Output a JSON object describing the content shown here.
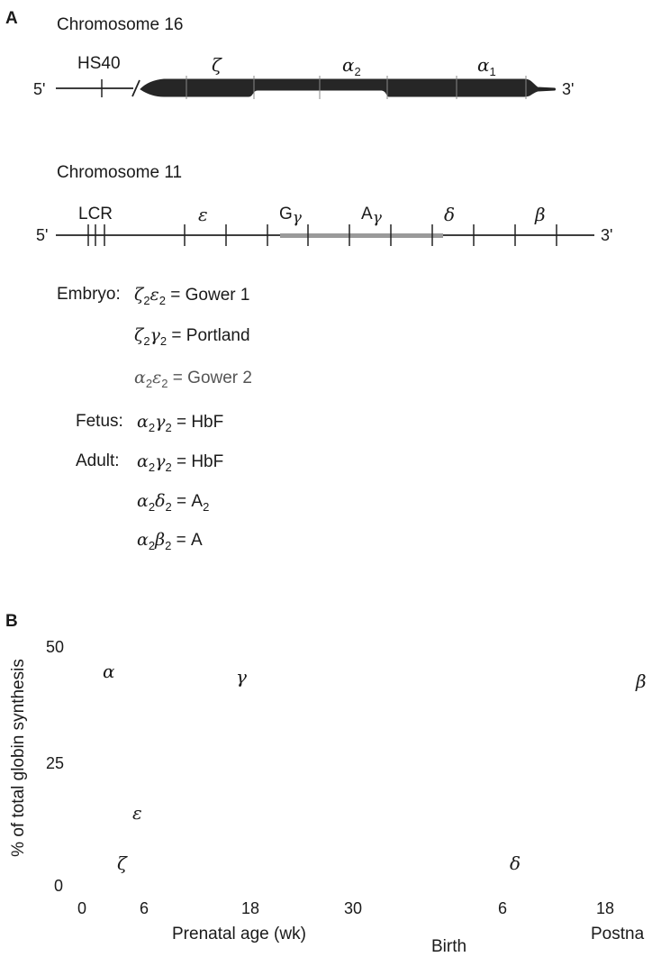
{
  "panel_a": {
    "label": "A",
    "chromosome16": {
      "title": "Chromosome 16",
      "five_prime": "5'",
      "three_prime": "3'",
      "region_label": "HS40",
      "genes": [
        "ζ",
        "α2",
        "α1"
      ]
    },
    "chromosome11": {
      "title": "Chromosome 11",
      "five_prime": "5'",
      "three_prime": "3'",
      "region_label": "LCR",
      "genes": [
        "ε",
        "Gγ",
        "Aγ",
        "δ",
        "β"
      ]
    },
    "hemoglobins": [
      {
        "stage": "Embryo:",
        "lhs": [
          "ζ",
          "2",
          "ε",
          "2"
        ],
        "name": "Gower 1"
      },
      {
        "stage": "",
        "lhs": [
          "ζ",
          "2",
          "γ",
          "2"
        ],
        "name": "Portland"
      },
      {
        "stage": "",
        "lhs": [
          "α",
          "2",
          "ε",
          "2"
        ],
        "name": "Gower 2"
      },
      {
        "stage": "Fetus:",
        "lhs": [
          "α",
          "2",
          "γ",
          "2"
        ],
        "name": "HbF"
      },
      {
        "stage": "Adult:",
        "lhs": [
          "α",
          "2",
          "γ",
          "2"
        ],
        "name": "HbF"
      },
      {
        "stage": "",
        "lhs": [
          "α",
          "2",
          "δ",
          "2"
        ],
        "name": "A",
        "name_sub": "2"
      },
      {
        "stage": "",
        "lhs": [
          "α",
          "2",
          "β",
          "2"
        ],
        "name": "A"
      }
    ]
  },
  "panel_b": {
    "label": "B",
    "ylabel": "% of total globin synthesis",
    "yticks": [
      "50",
      "25",
      "0"
    ],
    "xticks": [
      "0",
      "6",
      "18",
      "30",
      "6",
      "18"
    ],
    "xlabel_prenatal": "Prenatal age (wk)",
    "xlabel_birth": "Birth",
    "xlabel_postnatal": "Postna",
    "curve_labels": [
      "α",
      "γ",
      "β",
      "ε",
      "ζ",
      "δ"
    ]
  },
  "colors": {
    "text": "#1a1a1a",
    "line": "#222222",
    "faded_line": "#7a7a7a"
  }
}
